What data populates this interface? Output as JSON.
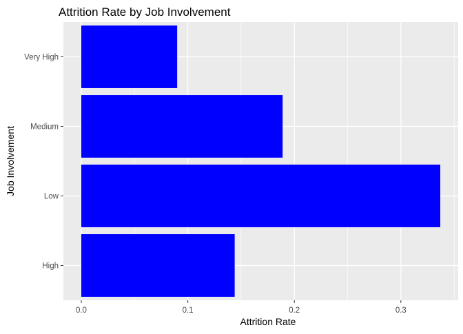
{
  "chart_data": {
    "type": "bar",
    "orientation": "horizontal",
    "title": "Attrition Rate by Job Involvement",
    "xlabel": "Attrition Rate",
    "ylabel": "Job Involvement",
    "categories": [
      "High",
      "Low",
      "Medium",
      "Very High"
    ],
    "values": [
      0.144,
      0.337,
      0.189,
      0.09
    ],
    "xlim": [
      -0.0168,
      0.3538
    ],
    "x_ticks": [
      0.0,
      0.1,
      0.2,
      0.3
    ],
    "x_tick_labels": [
      "0.0",
      "0.1",
      "0.2",
      "0.3"
    ],
    "bar_color": "#0000ff",
    "panel_background": "#ebebeb",
    "grid": true,
    "legend": "none"
  }
}
